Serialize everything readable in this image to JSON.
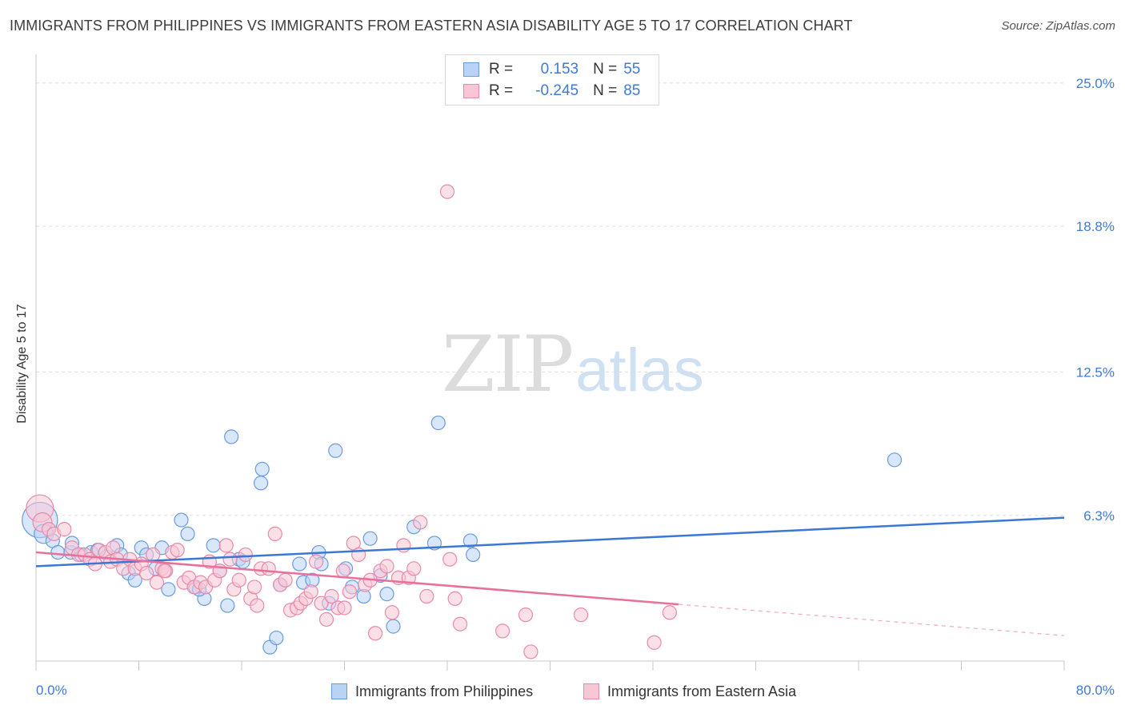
{
  "header": {
    "title": "IMMIGRANTS FROM PHILIPPINES VS IMMIGRANTS FROM EASTERN ASIA DISABILITY AGE 5 TO 17 CORRELATION CHART",
    "source": "Source: ZipAtlas.com"
  },
  "watermark": {
    "zip": "ZIP",
    "atlas": "atlas"
  },
  "legend": {
    "r_label": "R =",
    "n_label": "N =",
    "rows": [
      {
        "r": "0.153",
        "n": "55",
        "fill": "#b9d3f5",
        "stroke": "#6a9be0"
      },
      {
        "r": "-0.245",
        "n": "85",
        "fill": "#f9c6d6",
        "stroke": "#e88aa8"
      }
    ]
  },
  "bottom_legend": {
    "items": [
      {
        "label": "Immigrants from Philippines",
        "fill": "#b9d3f5",
        "stroke": "#6a9be0"
      },
      {
        "label": "Immigrants from Eastern Asia",
        "fill": "#f9c6d6",
        "stroke": "#e88aa8"
      }
    ]
  },
  "chart_data": {
    "type": "scatter",
    "title": "IMMIGRANTS FROM PHILIPPINES VS IMMIGRANTS FROM EASTERN ASIA DISABILITY AGE 5 TO 17 CORRELATION CHART",
    "xlabel": "",
    "ylabel": "Disability Age 5 to 17",
    "xlim": [
      0,
      80
    ],
    "ylim": [
      0,
      26.1
    ],
    "x_tick_labels": [
      {
        "value": 0,
        "label": "0.0%"
      },
      {
        "value": 80,
        "label": "80.0%"
      }
    ],
    "y_tick_labels": [
      {
        "value": 6.3,
        "label": "6.3%"
      },
      {
        "value": 12.5,
        "label": "12.5%"
      },
      {
        "value": 18.8,
        "label": "18.8%"
      },
      {
        "value": 25.0,
        "label": "25.0%"
      }
    ],
    "grid": true,
    "colors": {
      "blue": "#3b78d4",
      "pink": "#e8709a",
      "tick_text": "#3f7ad6"
    },
    "series": [
      {
        "name": "Immigrants from Philippines",
        "color": "#6a9be0",
        "fill": "#b9d3f5",
        "trend": {
          "x0": 0,
          "y0": 4.1,
          "x1": 80,
          "y1": 6.2,
          "dash_from": null
        },
        "points": [
          [
            0.3,
            6.1,
            2.6
          ],
          [
            0.6,
            5.5,
            1.4
          ],
          [
            1.3,
            5.2,
            1
          ],
          [
            1.7,
            4.7,
            1
          ],
          [
            2.7,
            4.7,
            1
          ],
          [
            2.8,
            5.1,
            1
          ],
          [
            3.5,
            4.6,
            1
          ],
          [
            4.3,
            4.7,
            1
          ],
          [
            4.8,
            4.8,
            1
          ],
          [
            5.5,
            4.5,
            1
          ],
          [
            6.3,
            5.0,
            1
          ],
          [
            6.6,
            4.6,
            1
          ],
          [
            7.2,
            3.8,
            1
          ],
          [
            7.7,
            3.5,
            1
          ],
          [
            8.2,
            4.9,
            1
          ],
          [
            8.6,
            4.6,
            1
          ],
          [
            9.3,
            4.0,
            1
          ],
          [
            9.8,
            4.9,
            1
          ],
          [
            10.3,
            3.1,
            1
          ],
          [
            11.3,
            6.1,
            1
          ],
          [
            11.8,
            5.5,
            1
          ],
          [
            12.4,
            3.2,
            1
          ],
          [
            13.1,
            2.7,
            1
          ],
          [
            13.8,
            5.0,
            1
          ],
          [
            12.7,
            3.1,
            1
          ],
          [
            14.3,
            3.9,
            1
          ],
          [
            14.9,
            2.4,
            1
          ],
          [
            15.2,
            9.7,
            1
          ],
          [
            15.8,
            4.4,
            1
          ],
          [
            16.1,
            4.3,
            1
          ],
          [
            17.5,
            7.7,
            1
          ],
          [
            17.6,
            8.3,
            1
          ],
          [
            18.2,
            0.6,
            1
          ],
          [
            18.7,
            1.0,
            1
          ],
          [
            19.0,
            3.3,
            1
          ],
          [
            20.5,
            4.2,
            1
          ],
          [
            20.8,
            3.4,
            1
          ],
          [
            21.5,
            3.5,
            1
          ],
          [
            22.8,
            2.5,
            1
          ],
          [
            23.3,
            9.1,
            1
          ],
          [
            22.0,
            4.7,
            1
          ],
          [
            24.1,
            4.0,
            1
          ],
          [
            24.6,
            3.2,
            1
          ],
          [
            25.5,
            2.8,
            1
          ],
          [
            26.0,
            5.3,
            1
          ],
          [
            26.8,
            3.7,
            1
          ],
          [
            27.3,
            2.9,
            1
          ],
          [
            27.8,
            1.5,
            1
          ],
          [
            29.4,
            5.8,
            1
          ],
          [
            31.3,
            10.3,
            1
          ],
          [
            31.0,
            5.1,
            1
          ],
          [
            33.8,
            5.2,
            1
          ],
          [
            34.0,
            4.6,
            1
          ],
          [
            66.8,
            8.7,
            1
          ],
          [
            22.2,
            4.2,
            1
          ]
        ]
      },
      {
        "name": "Immigrants from Eastern Asia",
        "color": "#e88aa8",
        "fill": "#f9c6d6",
        "trend": {
          "x0": 0,
          "y0": 4.7,
          "x1": 80,
          "y1": 1.1,
          "dash_from": 50
        },
        "points": [
          [
            0.3,
            6.6,
            2.0
          ],
          [
            0.5,
            6.0,
            1.4
          ],
          [
            1.0,
            5.7,
            1
          ],
          [
            1.4,
            5.5,
            1
          ],
          [
            2.2,
            5.7,
            1
          ],
          [
            2.8,
            4.9,
            1
          ],
          [
            3.3,
            4.6,
            1
          ],
          [
            3.8,
            4.6,
            1
          ],
          [
            4.2,
            4.4,
            1
          ],
          [
            4.6,
            4.2,
            1
          ],
          [
            4.9,
            4.8,
            1
          ],
          [
            5.4,
            4.7,
            1
          ],
          [
            5.8,
            4.3,
            1
          ],
          [
            6.0,
            4.9,
            1
          ],
          [
            6.3,
            4.4,
            1
          ],
          [
            6.8,
            4.0,
            1
          ],
          [
            7.3,
            4.4,
            1
          ],
          [
            7.7,
            4.0,
            1
          ],
          [
            8.2,
            4.2,
            1
          ],
          [
            8.6,
            3.8,
            1
          ],
          [
            9.1,
            4.6,
            1
          ],
          [
            9.4,
            3.4,
            1
          ],
          [
            9.8,
            4.0,
            1
          ],
          [
            10.1,
            3.9,
            1
          ],
          [
            10.6,
            4.7,
            1
          ],
          [
            11.0,
            4.8,
            1
          ],
          [
            11.5,
            3.4,
            1
          ],
          [
            11.9,
            3.6,
            1
          ],
          [
            12.3,
            3.2,
            1
          ],
          [
            12.8,
            3.4,
            1
          ],
          [
            13.2,
            3.2,
            1
          ],
          [
            13.5,
            4.3,
            1
          ],
          [
            13.9,
            3.5,
            1
          ],
          [
            14.3,
            3.9,
            1
          ],
          [
            14.8,
            5.0,
            1
          ],
          [
            15.1,
            4.4,
            1
          ],
          [
            15.4,
            3.1,
            1
          ],
          [
            15.8,
            3.5,
            1
          ],
          [
            16.3,
            4.6,
            1
          ],
          [
            16.7,
            2.7,
            1
          ],
          [
            17.2,
            2.4,
            1
          ],
          [
            17.5,
            4.0,
            1
          ],
          [
            18.1,
            4.0,
            1
          ],
          [
            18.6,
            5.5,
            1
          ],
          [
            19.0,
            3.3,
            1
          ],
          [
            19.4,
            3.5,
            1
          ],
          [
            19.8,
            2.2,
            1
          ],
          [
            20.3,
            2.3,
            1
          ],
          [
            20.6,
            2.5,
            1
          ],
          [
            21.0,
            2.7,
            1
          ],
          [
            21.4,
            3.0,
            1
          ],
          [
            21.8,
            4.3,
            1
          ],
          [
            22.2,
            2.5,
            1
          ],
          [
            22.6,
            1.8,
            1
          ],
          [
            23.0,
            2.8,
            1
          ],
          [
            23.5,
            2.3,
            1
          ],
          [
            23.9,
            3.9,
            1
          ],
          [
            24.4,
            3.0,
            1
          ],
          [
            24.7,
            5.1,
            1
          ],
          [
            25.1,
            4.6,
            1
          ],
          [
            25.6,
            3.3,
            1
          ],
          [
            26.0,
            3.5,
            1
          ],
          [
            26.4,
            1.2,
            1
          ],
          [
            26.8,
            3.9,
            1
          ],
          [
            27.3,
            4.1,
            1
          ],
          [
            27.7,
            2.1,
            1
          ],
          [
            28.2,
            3.6,
            1
          ],
          [
            28.6,
            5.0,
            1
          ],
          [
            29.0,
            3.6,
            1
          ],
          [
            29.4,
            4.0,
            1
          ],
          [
            29.9,
            6.0,
            1
          ],
          [
            30.4,
            2.8,
            1
          ],
          [
            32.0,
            20.3,
            1
          ],
          [
            32.2,
            4.4,
            1
          ],
          [
            32.6,
            2.7,
            1
          ],
          [
            33.0,
            1.6,
            1
          ],
          [
            36.3,
            1.3,
            1
          ],
          [
            38.1,
            2.0,
            1
          ],
          [
            38.5,
            0.4,
            1
          ],
          [
            42.4,
            2.0,
            1
          ],
          [
            48.1,
            0.8,
            1
          ],
          [
            49.3,
            2.1,
            1
          ],
          [
            24.0,
            2.3,
            1
          ],
          [
            17.0,
            3.2,
            1
          ],
          [
            10.0,
            3.9,
            1
          ]
        ]
      }
    ]
  }
}
